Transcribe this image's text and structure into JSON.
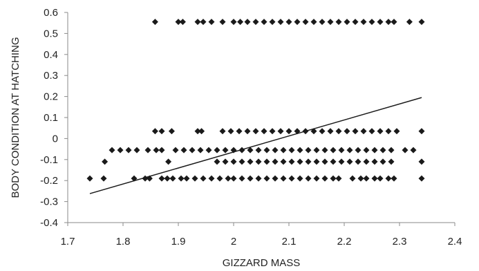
{
  "chart_data": {
    "type": "scatter",
    "title": "",
    "xlabel": "GIZZARD MASS",
    "ylabel": "BODY CONDITION AT HATCHING",
    "xlim": [
      1.7,
      2.4
    ],
    "ylim": [
      -0.4,
      0.6
    ],
    "x_ticks": [
      "1.7",
      "1.8",
      "1.9",
      "2",
      "2.1",
      "2.2",
      "2.3",
      "2.4"
    ],
    "y_ticks": [
      "-0.4",
      "-0.3",
      "-0.2",
      "-0.1",
      "0",
      "0.1",
      "0.2",
      "0.3",
      "0.4",
      "0.5",
      "0.6"
    ],
    "grid": false,
    "marker": "diamond",
    "marker_color": "#1a1a1a",
    "line_color": "#1a1a1a",
    "trendline": {
      "x": [
        1.74,
        2.34
      ],
      "y": [
        -0.262,
        0.195
      ]
    },
    "series": [
      {
        "points": [
          [
            1.74,
            -0.19
          ],
          [
            1.765,
            -0.19
          ],
          [
            1.82,
            -0.19
          ],
          [
            1.84,
            -0.19
          ],
          [
            1.848,
            -0.19
          ],
          [
            1.87,
            -0.19
          ],
          [
            1.88,
            -0.19
          ],
          [
            1.89,
            -0.19
          ],
          [
            1.905,
            -0.19
          ],
          [
            1.915,
            -0.19
          ],
          [
            1.93,
            -0.19
          ],
          [
            1.945,
            -0.19
          ],
          [
            1.96,
            -0.19
          ],
          [
            1.975,
            -0.19
          ],
          [
            1.99,
            -0.19
          ],
          [
            2.0,
            -0.19
          ],
          [
            2.015,
            -0.19
          ],
          [
            2.03,
            -0.19
          ],
          [
            2.045,
            -0.19
          ],
          [
            2.06,
            -0.19
          ],
          [
            2.075,
            -0.19
          ],
          [
            2.09,
            -0.19
          ],
          [
            2.105,
            -0.19
          ],
          [
            2.12,
            -0.19
          ],
          [
            2.135,
            -0.19
          ],
          [
            2.15,
            -0.19
          ],
          [
            2.165,
            -0.19
          ],
          [
            2.18,
            -0.19
          ],
          [
            2.19,
            -0.19
          ],
          [
            2.215,
            -0.19
          ],
          [
            2.23,
            -0.19
          ],
          [
            2.24,
            -0.19
          ],
          [
            2.255,
            -0.19
          ],
          [
            2.265,
            -0.19
          ],
          [
            2.28,
            -0.19
          ],
          [
            2.29,
            -0.19
          ],
          [
            2.34,
            -0.19
          ],
          [
            1.767,
            -0.11
          ],
          [
            1.882,
            -0.11
          ],
          [
            1.97,
            -0.11
          ],
          [
            1.985,
            -0.11
          ],
          [
            2.0,
            -0.11
          ],
          [
            2.015,
            -0.11
          ],
          [
            2.03,
            -0.11
          ],
          [
            2.045,
            -0.11
          ],
          [
            2.06,
            -0.11
          ],
          [
            2.075,
            -0.11
          ],
          [
            2.09,
            -0.11
          ],
          [
            2.105,
            -0.11
          ],
          [
            2.12,
            -0.11
          ],
          [
            2.135,
            -0.11
          ],
          [
            2.15,
            -0.11
          ],
          [
            2.165,
            -0.11
          ],
          [
            2.18,
            -0.11
          ],
          [
            2.195,
            -0.11
          ],
          [
            2.21,
            -0.11
          ],
          [
            2.225,
            -0.11
          ],
          [
            2.24,
            -0.11
          ],
          [
            2.255,
            -0.11
          ],
          [
            2.27,
            -0.11
          ],
          [
            2.285,
            -0.11
          ],
          [
            2.34,
            -0.11
          ],
          [
            1.78,
            -0.055
          ],
          [
            1.795,
            -0.055
          ],
          [
            1.81,
            -0.055
          ],
          [
            1.825,
            -0.055
          ],
          [
            1.845,
            -0.055
          ],
          [
            1.86,
            -0.055
          ],
          [
            1.87,
            -0.055
          ],
          [
            1.895,
            -0.055
          ],
          [
            1.91,
            -0.055
          ],
          [
            1.925,
            -0.055
          ],
          [
            1.94,
            -0.055
          ],
          [
            1.955,
            -0.055
          ],
          [
            1.97,
            -0.055
          ],
          [
            1.985,
            -0.055
          ],
          [
            2.0,
            -0.055
          ],
          [
            2.015,
            -0.055
          ],
          [
            2.03,
            -0.055
          ],
          [
            2.045,
            -0.055
          ],
          [
            2.06,
            -0.055
          ],
          [
            2.075,
            -0.055
          ],
          [
            2.09,
            -0.055
          ],
          [
            2.105,
            -0.055
          ],
          [
            2.12,
            -0.055
          ],
          [
            2.135,
            -0.055
          ],
          [
            2.15,
            -0.055
          ],
          [
            2.165,
            -0.055
          ],
          [
            2.18,
            -0.055
          ],
          [
            2.195,
            -0.055
          ],
          [
            2.21,
            -0.055
          ],
          [
            2.225,
            -0.055
          ],
          [
            2.24,
            -0.055
          ],
          [
            2.255,
            -0.055
          ],
          [
            2.27,
            -0.055
          ],
          [
            2.285,
            -0.055
          ],
          [
            2.31,
            -0.055
          ],
          [
            2.325,
            -0.055
          ],
          [
            1.858,
            0.035
          ],
          [
            1.87,
            0.035
          ],
          [
            1.888,
            0.035
          ],
          [
            1.935,
            0.035
          ],
          [
            1.942,
            0.035
          ],
          [
            1.98,
            0.035
          ],
          [
            1.995,
            0.035
          ],
          [
            2.01,
            0.035
          ],
          [
            2.025,
            0.035
          ],
          [
            2.04,
            0.035
          ],
          [
            2.055,
            0.035
          ],
          [
            2.07,
            0.035
          ],
          [
            2.085,
            0.035
          ],
          [
            2.1,
            0.035
          ],
          [
            2.115,
            0.035
          ],
          [
            2.13,
            0.035
          ],
          [
            2.145,
            0.035
          ],
          [
            2.16,
            0.035
          ],
          [
            2.175,
            0.035
          ],
          [
            2.19,
            0.035
          ],
          [
            2.205,
            0.035
          ],
          [
            2.22,
            0.035
          ],
          [
            2.235,
            0.035
          ],
          [
            2.25,
            0.035
          ],
          [
            2.265,
            0.035
          ],
          [
            2.28,
            0.035
          ],
          [
            2.295,
            0.035
          ],
          [
            2.34,
            0.035
          ],
          [
            1.858,
            0.555
          ],
          [
            1.9,
            0.555
          ],
          [
            1.908,
            0.555
          ],
          [
            1.935,
            0.555
          ],
          [
            1.945,
            0.555
          ],
          [
            1.96,
            0.555
          ],
          [
            1.98,
            0.555
          ],
          [
            2.0,
            0.555
          ],
          [
            2.012,
            0.555
          ],
          [
            2.025,
            0.555
          ],
          [
            2.04,
            0.555
          ],
          [
            2.055,
            0.555
          ],
          [
            2.07,
            0.555
          ],
          [
            2.085,
            0.555
          ],
          [
            2.1,
            0.555
          ],
          [
            2.115,
            0.555
          ],
          [
            2.13,
            0.555
          ],
          [
            2.145,
            0.555
          ],
          [
            2.16,
            0.555
          ],
          [
            2.175,
            0.555
          ],
          [
            2.19,
            0.555
          ],
          [
            2.205,
            0.555
          ],
          [
            2.22,
            0.555
          ],
          [
            2.235,
            0.555
          ],
          [
            2.25,
            0.555
          ],
          [
            2.265,
            0.555
          ],
          [
            2.28,
            0.555
          ],
          [
            2.29,
            0.555
          ],
          [
            2.318,
            0.555
          ],
          [
            2.34,
            0.555
          ]
        ]
      }
    ]
  }
}
